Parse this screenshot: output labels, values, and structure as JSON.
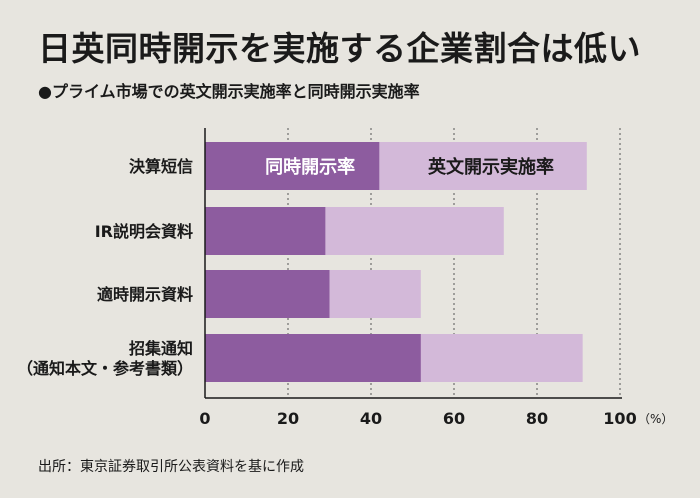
{
  "title": "日英同時開示を実施する企業割合は低い",
  "subtitle": "プライム市場での英文開示実施率と同時開示実施率",
  "source": "出所：東京証券取引所公表資料を基に作成",
  "colors": {
    "simultaneous": "#8d5c9f",
    "english": "#d3b9d9",
    "grid": "#555555",
    "background": "#e7e5df"
  },
  "chart_data": {
    "type": "bar",
    "orientation": "horizontal",
    "stacked": "overlay",
    "categories": [
      [
        "決算短信"
      ],
      [
        "IR説明会資料"
      ],
      [
        "適時開示資料"
      ],
      [
        "招集通知",
        "（通知本文・参考書類）"
      ]
    ],
    "series": [
      {
        "name": "同時開示率",
        "values": [
          42,
          29,
          30,
          52
        ]
      },
      {
        "name": "英文開示実施率",
        "values": [
          92,
          72,
          52,
          91
        ]
      }
    ],
    "xticks": [
      "0",
      "20",
      "40",
      "60",
      "80",
      "100"
    ],
    "xunit": "（%）",
    "xlim": [
      0,
      100
    ],
    "grid": true,
    "legend": "inside first bar"
  }
}
